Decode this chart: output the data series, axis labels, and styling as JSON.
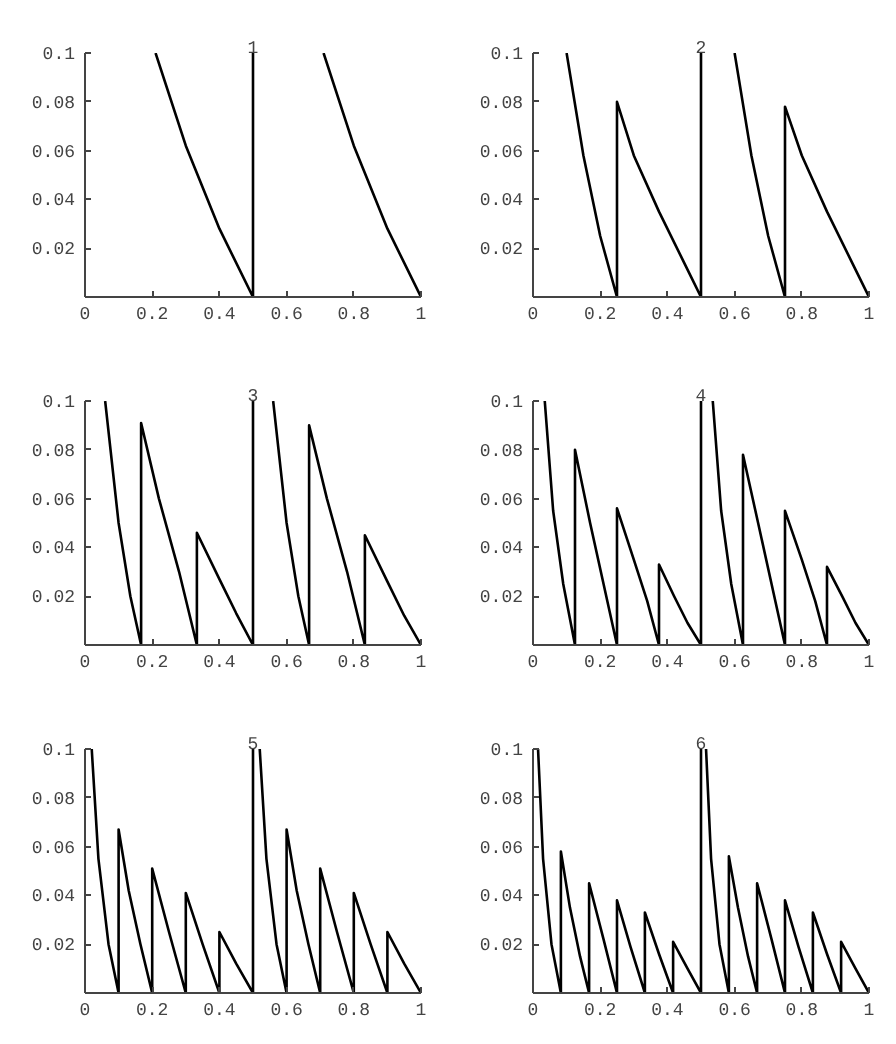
{
  "chart_data": [
    {
      "type": "line",
      "title": "1",
      "xlim": [
        0,
        1
      ],
      "ylim": [
        0,
        0.1
      ],
      "xticks": [
        0,
        0.2,
        0.4,
        0.6,
        0.8,
        1
      ],
      "yticks": [
        0.02,
        0.04,
        0.06,
        0.08,
        0.1
      ],
      "series": [
        {
          "color": "#000000",
          "x": [
            0.21,
            0.3,
            0.4,
            0.5,
            0.5
          ],
          "values": [
            0.1,
            0.062,
            0.028,
            0,
            0.1
          ]
        },
        {
          "color": "#000000",
          "x": [
            0.71,
            0.8,
            0.9,
            1
          ],
          "values": [
            0.1,
            0.062,
            0.028,
            0
          ]
        }
      ]
    },
    {
      "type": "line",
      "title": "2",
      "xlim": [
        0,
        1
      ],
      "ylim": [
        0,
        0.1
      ],
      "xticks": [
        0,
        0.2,
        0.4,
        0.6,
        0.8,
        1
      ],
      "yticks": [
        0.02,
        0.04,
        0.06,
        0.08,
        0.1
      ],
      "series": [
        {
          "color": "#000000",
          "x": [
            0.1,
            0.15,
            0.2,
            0.25,
            0.25,
            0.3,
            0.375,
            0.45,
            0.5,
            0.5
          ],
          "values": [
            0.1,
            0.058,
            0.025,
            0,
            0.08,
            0.058,
            0.035,
            0.014,
            0,
            0.1
          ]
        },
        {
          "color": "#000000",
          "x": [
            0.6,
            0.65,
            0.7,
            0.75,
            0.75,
            0.8,
            0.875,
            0.95,
            1
          ],
          "values": [
            0.1,
            0.058,
            0.025,
            0,
            0.078,
            0.058,
            0.035,
            0.014,
            0
          ]
        }
      ]
    },
    {
      "type": "line",
      "title": "3",
      "xlim": [
        0,
        1
      ],
      "ylim": [
        0,
        0.1
      ],
      "xticks": [
        0,
        0.2,
        0.4,
        0.6,
        0.8,
        1
      ],
      "yticks": [
        0.02,
        0.04,
        0.06,
        0.08,
        0.1
      ],
      "series": [
        {
          "color": "#000000",
          "x": [
            0.06,
            0.1,
            0.135,
            0.167,
            0.167,
            0.22,
            0.28,
            0.333,
            0.333,
            0.4,
            0.45,
            0.5,
            0.5
          ],
          "values": [
            0.1,
            0.05,
            0.02,
            0,
            0.091,
            0.06,
            0.03,
            0,
            0.046,
            0.027,
            0.013,
            0,
            0.1
          ]
        },
        {
          "color": "#000000",
          "x": [
            0.56,
            0.6,
            0.635,
            0.667,
            0.667,
            0.72,
            0.78,
            0.833,
            0.833,
            0.9,
            0.95,
            1
          ],
          "values": [
            0.1,
            0.05,
            0.02,
            0,
            0.09,
            0.06,
            0.03,
            0,
            0.045,
            0.026,
            0.012,
            0
          ]
        }
      ]
    },
    {
      "type": "line",
      "title": "4",
      "xlim": [
        0,
        1
      ],
      "ylim": [
        0,
        0.1
      ],
      "xticks": [
        0,
        0.2,
        0.4,
        0.6,
        0.8,
        1
      ],
      "yticks": [
        0.02,
        0.04,
        0.06,
        0.08,
        0.1
      ],
      "series": [
        {
          "color": "#000000",
          "x": [
            0.035,
            0.06,
            0.09,
            0.125,
            0.125,
            0.17,
            0.21,
            0.25,
            0.25,
            0.3,
            0.34,
            0.375,
            0.375,
            0.42,
            0.46,
            0.5,
            0.5
          ],
          "values": [
            0.1,
            0.055,
            0.025,
            0,
            0.08,
            0.05,
            0.025,
            0,
            0.056,
            0.035,
            0.018,
            0,
            0.033,
            0.02,
            0.009,
            0,
            0.1
          ]
        },
        {
          "color": "#000000",
          "x": [
            0.535,
            0.56,
            0.59,
            0.625,
            0.625,
            0.67,
            0.71,
            0.75,
            0.75,
            0.8,
            0.84,
            0.875,
            0.875,
            0.92,
            0.96,
            1
          ],
          "values": [
            0.1,
            0.055,
            0.025,
            0,
            0.078,
            0.05,
            0.025,
            0,
            0.055,
            0.035,
            0.018,
            0,
            0.032,
            0.02,
            0.009,
            0
          ]
        }
      ]
    },
    {
      "type": "line",
      "title": "5",
      "xlim": [
        0,
        1
      ],
      "ylim": [
        0,
        0.1
      ],
      "xticks": [
        0,
        0.2,
        0.4,
        0.6,
        0.8,
        1
      ],
      "yticks": [
        0.02,
        0.04,
        0.06,
        0.08,
        0.1
      ],
      "series": [
        {
          "color": "#000000",
          "x": [
            0.02,
            0.04,
            0.07,
            0.1,
            0.1,
            0.13,
            0.165,
            0.2,
            0.2,
            0.25,
            0.3,
            0.3,
            0.35,
            0.4,
            0.4,
            0.45,
            0.5,
            0.5
          ],
          "values": [
            0.1,
            0.055,
            0.02,
            0,
            0.067,
            0.042,
            0.02,
            0,
            0.051,
            0.025,
            0,
            0.041,
            0.02,
            0,
            0.025,
            0.012,
            0,
            0.1
          ]
        },
        {
          "color": "#000000",
          "x": [
            0.52,
            0.54,
            0.57,
            0.6,
            0.6,
            0.63,
            0.665,
            0.7,
            0.7,
            0.75,
            0.8,
            0.8,
            0.85,
            0.9,
            0.9,
            0.95,
            1
          ],
          "values": [
            0.1,
            0.055,
            0.02,
            0,
            0.067,
            0.042,
            0.02,
            0,
            0.051,
            0.025,
            0,
            0.041,
            0.02,
            0,
            0.025,
            0.012,
            0
          ]
        }
      ]
    },
    {
      "type": "line",
      "title": "6",
      "xlim": [
        0,
        1
      ],
      "ylim": [
        0,
        0.1
      ],
      "xticks": [
        0,
        0.2,
        0.4,
        0.6,
        0.8,
        1
      ],
      "yticks": [
        0.02,
        0.04,
        0.06,
        0.08,
        0.1
      ],
      "series": [
        {
          "color": "#000000",
          "x": [
            0.015,
            0.03,
            0.055,
            0.083,
            0.083,
            0.11,
            0.14,
            0.167,
            0.167,
            0.21,
            0.25,
            0.25,
            0.29,
            0.333,
            0.333,
            0.375,
            0.417,
            0.417,
            0.46,
            0.5,
            0.5
          ],
          "values": [
            0.1,
            0.055,
            0.02,
            0,
            0.058,
            0.035,
            0.015,
            0,
            0.045,
            0.022,
            0,
            0.038,
            0.019,
            0,
            0.033,
            0.016,
            0,
            0.021,
            0.01,
            0,
            0.1
          ]
        },
        {
          "color": "#000000",
          "x": [
            0.515,
            0.53,
            0.555,
            0.583,
            0.583,
            0.61,
            0.64,
            0.667,
            0.667,
            0.71,
            0.75,
            0.75,
            0.79,
            0.833,
            0.833,
            0.875,
            0.917,
            0.917,
            0.96,
            1
          ],
          "values": [
            0.1,
            0.055,
            0.02,
            0,
            0.056,
            0.035,
            0.015,
            0,
            0.045,
            0.022,
            0,
            0.038,
            0.019,
            0,
            0.033,
            0.016,
            0,
            0.021,
            0.01,
            0
          ]
        }
      ]
    }
  ]
}
